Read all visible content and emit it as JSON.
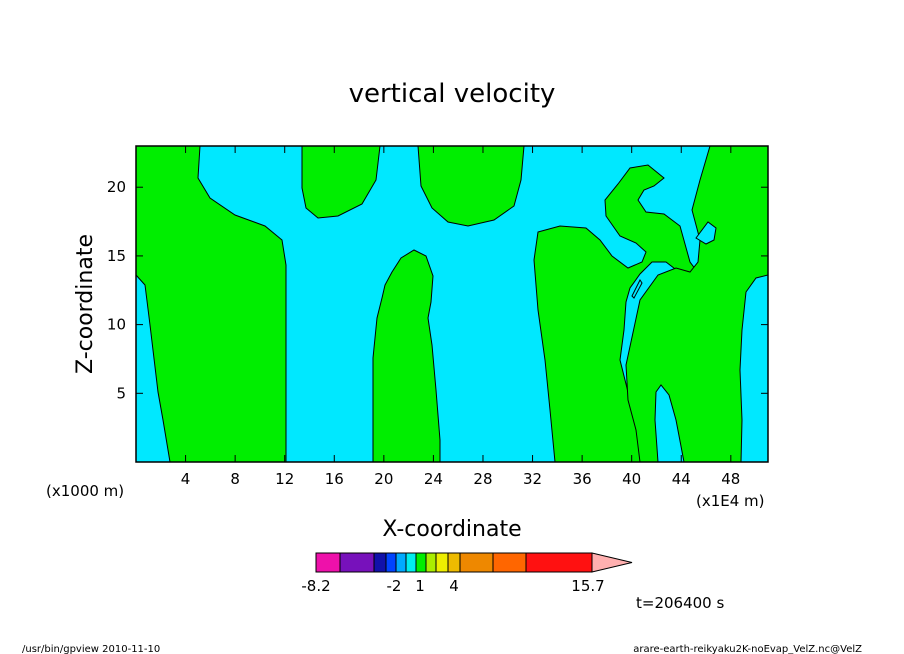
{
  "chart_data": {
    "type": "heatmap",
    "title": "vertical velocity",
    "xlabel": "X-coordinate",
    "ylabel": "Z-coordinate",
    "x_unit_left": "(x1000 m)",
    "x_unit_right": "(x1E4 m)",
    "xlim": [
      0,
      51
    ],
    "ylim": [
      0,
      23
    ],
    "xticks": [
      "4",
      "8",
      "12",
      "16",
      "20",
      "24",
      "28",
      "32",
      "36",
      "40",
      "44",
      "48"
    ],
    "xtick_values": [
      4,
      8,
      12,
      16,
      20,
      24,
      28,
      32,
      36,
      40,
      44,
      48
    ],
    "yticks": [
      "5",
      "10",
      "15",
      "20"
    ],
    "ytick_values": [
      5,
      10,
      15,
      20
    ],
    "colors": {
      "positive": "#00ee00",
      "negative": "#00e8ff"
    },
    "colorbar": {
      "colors": [
        "#ee11aa",
        "#7711bb",
        "#1111aa",
        "#0044ff",
        "#00aaff",
        "#00eeee",
        "#00ee00",
        "#aaee00",
        "#eeee00",
        "#eebb00",
        "#ee8800",
        "#ff6600",
        "#ff1111",
        "#ff8080",
        "#ffb0b0"
      ],
      "labels": [
        "-8.2",
        "-2",
        "1",
        "4",
        "15.7"
      ]
    },
    "time_label": "t=206400 s",
    "footer_left": "/usr/bin/gpview  2010-11-10",
    "footer_right": "arare-earth-reikyaku2K-noEvap_VelZ.nc@VelZ"
  }
}
